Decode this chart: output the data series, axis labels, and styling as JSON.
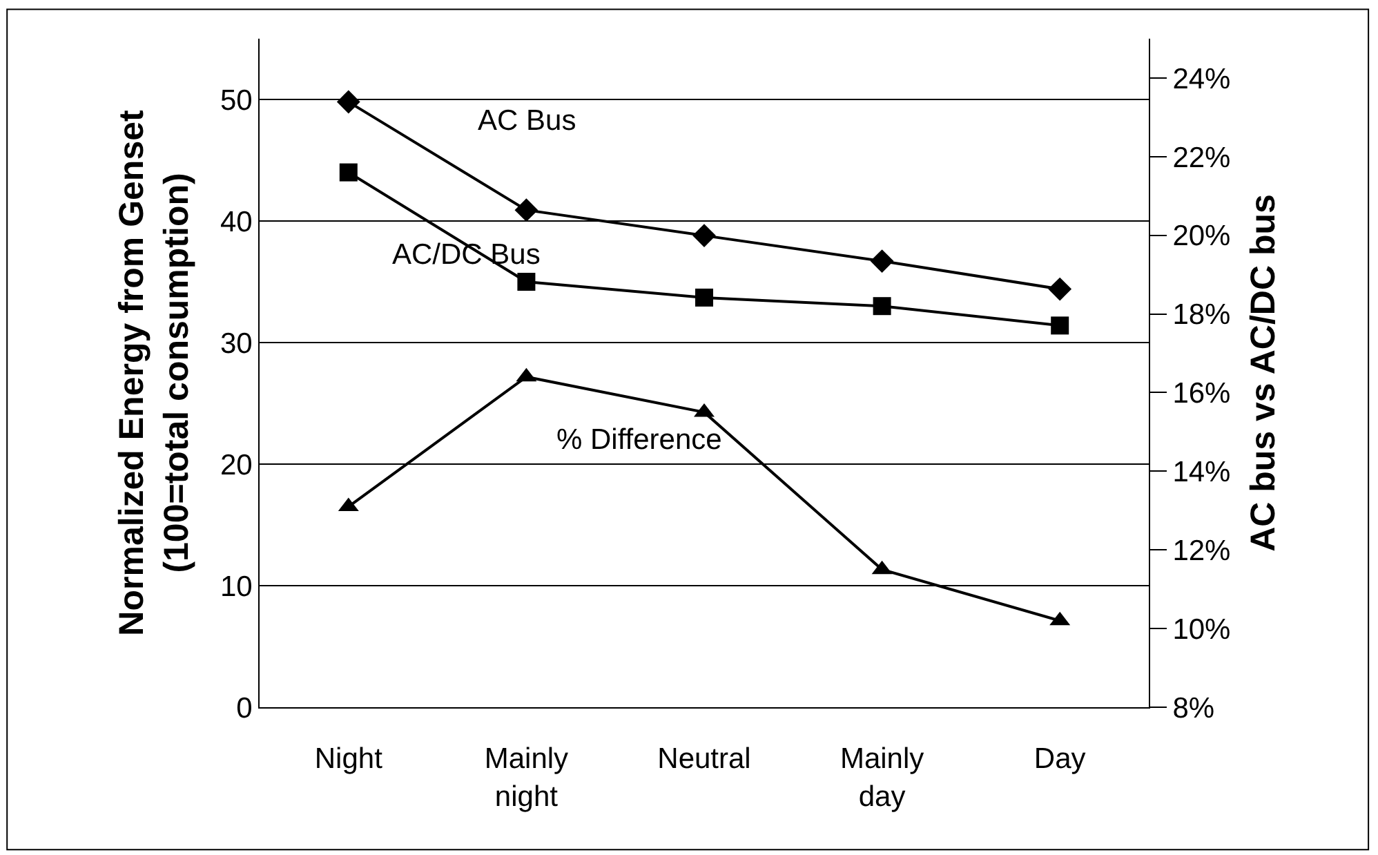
{
  "chart_data": {
    "type": "line",
    "categories": [
      "Night",
      "Mainly\nnight",
      "Neutral",
      "Mainly\nday",
      "Day"
    ],
    "ylabel": "Normalized Energy from Genset\n(100=total consumption)",
    "y2label": "AC bus vs AC/DC bus",
    "ylim": [
      0,
      55
    ],
    "yticks": [
      0,
      10,
      20,
      30,
      40,
      50
    ],
    "y2lim": [
      8,
      25
    ],
    "y2ticks": [
      {
        "value": 8,
        "label": "8%"
      },
      {
        "value": 10,
        "label": "10%"
      },
      {
        "value": 12,
        "label": "12%"
      },
      {
        "value": 14,
        "label": "14%"
      },
      {
        "value": 16,
        "label": "16%"
      },
      {
        "value": 18,
        "label": "18%"
      },
      {
        "value": 20,
        "label": "20%"
      },
      {
        "value": 22,
        "label": "22%"
      },
      {
        "value": 24,
        "label": "24%"
      }
    ],
    "grid": "y",
    "legend": false,
    "line_style": "solid",
    "series": [
      {
        "name": "AC Bus",
        "color": "#000000",
        "marker": "diamond",
        "values": [
          49.8,
          40.9,
          38.8,
          36.7,
          34.4
        ]
      },
      {
        "name": "AC/DC Bus",
        "color": "#000000",
        "marker": "square",
        "values": [
          44.0,
          35.0,
          33.7,
          33.0,
          31.4
        ]
      },
      {
        "name": "% Difference",
        "color": "#000000",
        "marker": "triangle",
        "axis": "y2",
        "values": [
          13.1,
          16.4,
          15.5,
          11.5,
          10.2
        ]
      }
    ]
  }
}
